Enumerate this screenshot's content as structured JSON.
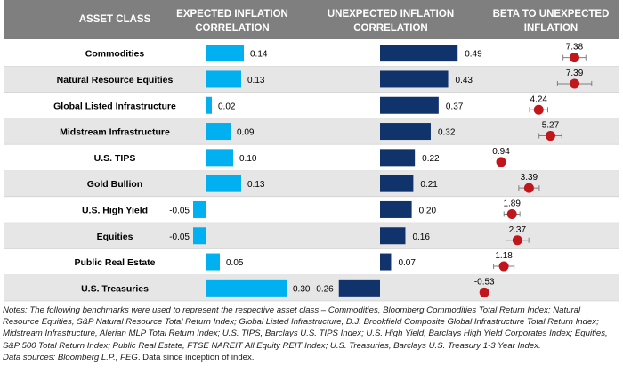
{
  "headers": {
    "asset_class": "ASSET CLASS",
    "expected_l1": "EXPECTED INFLATION",
    "expected_l2": "CORRELATION",
    "unexpected_l1": "UNEXPECTED INFLATION",
    "unexpected_l2": "CORRELATION",
    "beta_l1": "BETA TO UNEXPECTED",
    "beta_l2": "INFLATION"
  },
  "colors": {
    "header_bg": "#7f7f7f",
    "row_band": "#e6e6e6",
    "expected_bar": "#00b0f0",
    "unexpected_bar": "#10336b",
    "beta_dot": "#c0161c",
    "error_bar": "#7f7f7f"
  },
  "chart_data": [
    {
      "type": "bar",
      "orientation": "horizontal",
      "title": "EXPECTED INFLATION CORRELATION",
      "categories": [
        "Commodities",
        "Natural Resource Equities",
        "Global Listed Infrastructure",
        "Midstream Infrastructure",
        "U.S. TIPS",
        "Gold Bullion",
        "U.S. High Yield",
        "Equities",
        "Public Real Estate",
        "U.S. Treasuries"
      ],
      "values": [
        0.14,
        0.13,
        0.02,
        0.09,
        0.1,
        0.13,
        -0.05,
        -0.05,
        0.05,
        0.3
      ],
      "labels": [
        "0.14",
        "0.13",
        "0.02",
        "0.09",
        "0.10",
        "0.13",
        "-0.05",
        "-0.05",
        "0.05",
        "0.30"
      ]
    },
    {
      "type": "bar",
      "orientation": "horizontal",
      "title": "UNEXPECTED INFLATION CORRELATION",
      "categories": [
        "Commodities",
        "Natural Resource Equities",
        "Global Listed Infrastructure",
        "Midstream Infrastructure",
        "U.S. TIPS",
        "Gold Bullion",
        "U.S. High Yield",
        "Equities",
        "Public Real Estate",
        "U.S. Treasuries"
      ],
      "values": [
        0.49,
        0.43,
        0.37,
        0.32,
        0.22,
        0.21,
        0.2,
        0.16,
        0.07,
        -0.26
      ],
      "labels": [
        "0.49",
        "0.43",
        "0.37",
        "0.32",
        "0.22",
        "0.21",
        "0.20",
        "0.16",
        "0.07",
        "-0.26"
      ]
    },
    {
      "type": "scatter",
      "title": "BETA TO UNEXPECTED INFLATION",
      "categories": [
        "Commodities",
        "Natural Resource Equities",
        "Global Listed Infrastructure",
        "Midstream Infrastructure",
        "U.S. TIPS",
        "Gold Bullion",
        "U.S. High Yield",
        "Equities",
        "Public Real Estate",
        "U.S. Treasuries"
      ],
      "values": [
        7.38,
        7.39,
        4.24,
        5.27,
        0.94,
        3.39,
        1.89,
        2.37,
        1.18,
        -0.53
      ],
      "labels": [
        "7.38",
        "7.39",
        "4.24",
        "5.27",
        "0.94",
        "3.39",
        "1.89",
        "2.37",
        "1.18",
        "-0.53"
      ],
      "error_half_width": [
        1.0,
        1.5,
        0.8,
        1.0,
        0,
        0.9,
        0.7,
        1.0,
        0.9,
        0
      ]
    }
  ],
  "notes": {
    "prefix": "Notes: The following benchmarks were used to represent the respective asset class – ",
    "body": "Commodities, Bloomberg Commodities Total Return Index; Natural Resource Equities, S&P Natural Resource Total Return Index; Global Listed Infrastructure, D.J. Brookfield Composite Global Infrastructure Total Return Index; Midstream Infrastructure, Alerian MLP Total Return Index; U.S. TIPS, Barclays U.S. TIPS Index; U.S. High Yield, Barclays High Yield Corporates Index; Equities, S&P 500 Total Return Index; Public Real Estate, FTSE NAREIT All Equity REIT Index; U.S. Treasuries, Barclays U.S. Treasury 1-3 Year Index.",
    "sources_prefix": "Data sources: ",
    "sources_italic": "Bloomberg L.P., FEG",
    "sources_suffix": ". Data since inception of index."
  }
}
